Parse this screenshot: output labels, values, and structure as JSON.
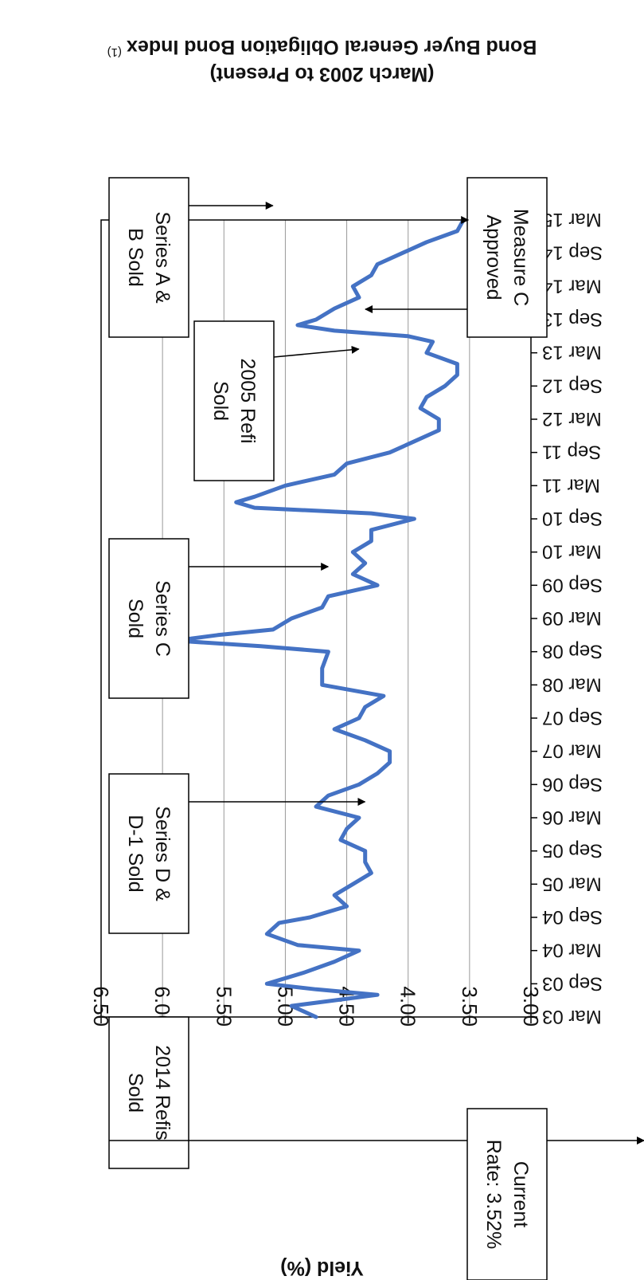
{
  "chart_data": {
    "type": "line",
    "title": "Bond Buyer General Obligation Bond Index",
    "title_superscript": "(1)",
    "subtitle": "(March 2003 to Present)",
    "ylabel": "Yield (%)",
    "xlabel": "",
    "ylim": [
      3.0,
      6.5
    ],
    "yticks": [
      "6.50",
      "6.00",
      "5.50",
      "5.00",
      "4.50",
      "4.00",
      "3.50",
      "3.00"
    ],
    "ytick_values": [
      6.5,
      6.0,
      5.5,
      5.0,
      4.5,
      4.0,
      3.5,
      3.0
    ],
    "xticks": [
      "Mar 03",
      "Sep 03",
      "Mar 04",
      "Sep 04",
      "Mar 05",
      "Sep 05",
      "Mar 06",
      "Sep 06",
      "Mar 07",
      "Sep 07",
      "Mar 08",
      "Sep 08",
      "Mar 09",
      "Sep 09",
      "Mar 10",
      "Sep 10",
      "Mar 11",
      "Sep 11",
      "Mar 12",
      "Sep 12",
      "Mar 13",
      "Sep 13",
      "Mar 14",
      "Sep 14",
      "Mar 15"
    ],
    "grid": "horizontal",
    "line_color": "#4472c4",
    "orientation": "rotated-180",
    "series": [
      {
        "x": [
          "Mar 03",
          "May 03",
          "Jul 03",
          "Aug 03",
          "Sep 03",
          "Nov 03",
          "Jan 04",
          "Mar 04",
          "Apr 04",
          "Jun 04",
          "Aug 04",
          "Sep 04",
          "Nov 04",
          "Jan 05",
          "Mar 05",
          "May 05",
          "Jul 05",
          "Sep 05",
          "Nov 05",
          "Jan 06",
          "Mar 06",
          "May 06",
          "Jul 06",
          "Sep 06",
          "Nov 06",
          "Jan 07",
          "Mar 07",
          "May 07",
          "Jul 07",
          "Sep 07",
          "Nov 07",
          "Jan 08",
          "Mar 08",
          "Jun 08",
          "Sep 08",
          "Oct 08",
          "Nov 08",
          "Dec 08",
          "Jan 09",
          "Mar 09",
          "May 09",
          "Jul 09",
          "Sep 09",
          "Nov 09",
          "Jan 10",
          "Mar 10",
          "May 10",
          "Jul 10",
          "Sep 10",
          "Oct 10",
          "Nov 10",
          "Dec 10",
          "Jan 11",
          "Mar 11",
          "May 11",
          "Jul 11",
          "Sep 11",
          "Nov 11",
          "Jan 12",
          "Mar 12",
          "May 12",
          "Jul 12",
          "Sep 12",
          "Nov 12",
          "Jan 13",
          "Mar 13",
          "May 13",
          "Jun 13",
          "Jul 13",
          "Aug 13",
          "Sep 13",
          "Nov 13",
          "Jan 14",
          "Mar 14",
          "May 14",
          "Jul 14",
          "Sep 14",
          "Nov 14",
          "Jan 15",
          "Mar 15"
        ],
        "values": [
          4.75,
          4.95,
          4.25,
          4.75,
          5.15,
          4.85,
          4.6,
          4.4,
          4.9,
          5.15,
          5.05,
          4.8,
          4.5,
          4.6,
          4.45,
          4.3,
          4.35,
          4.35,
          4.55,
          4.5,
          4.4,
          4.75,
          4.65,
          4.4,
          4.25,
          4.15,
          4.15,
          4.35,
          4.6,
          4.4,
          4.35,
          4.2,
          4.7,
          4.7,
          4.65,
          5.2,
          5.9,
          5.55,
          5.1,
          4.95,
          4.7,
          4.65,
          4.25,
          4.45,
          4.35,
          4.45,
          4.3,
          4.3,
          3.95,
          4.3,
          5.25,
          5.4,
          5.25,
          5.0,
          4.6,
          4.5,
          4.15,
          3.95,
          3.75,
          3.75,
          3.9,
          3.85,
          3.7,
          3.6,
          3.6,
          3.85,
          3.8,
          4.0,
          4.6,
          4.9,
          4.75,
          4.6,
          4.4,
          4.45,
          4.3,
          4.25,
          4.05,
          3.85,
          3.6,
          3.55
        ]
      }
    ],
    "annotations": [
      {
        "lines": [
          "Series A &",
          "B Sold"
        ],
        "arrow_to": "Aug 04"
      },
      {
        "lines": [
          "Measure C",
          "Approved"
        ],
        "arrow_to": "Mar 04"
      },
      {
        "lines": [
          "2005 Refi",
          "Sold"
        ],
        "arrow_to": "Jul 05"
      },
      {
        "lines": [
          "Series C",
          "Sold"
        ],
        "arrow_to": "Jul 07"
      },
      {
        "lines": [
          "Series D &",
          "D-1 Sold"
        ],
        "arrow_to": "Oct 10"
      },
      {
        "lines": [
          "2014 Refis",
          "Sold"
        ],
        "arrow_to": "Aug 14"
      },
      {
        "lines": [
          "Current",
          "Rate: 3.52%"
        ],
        "arrow_to": "Mar 15"
      }
    ]
  }
}
